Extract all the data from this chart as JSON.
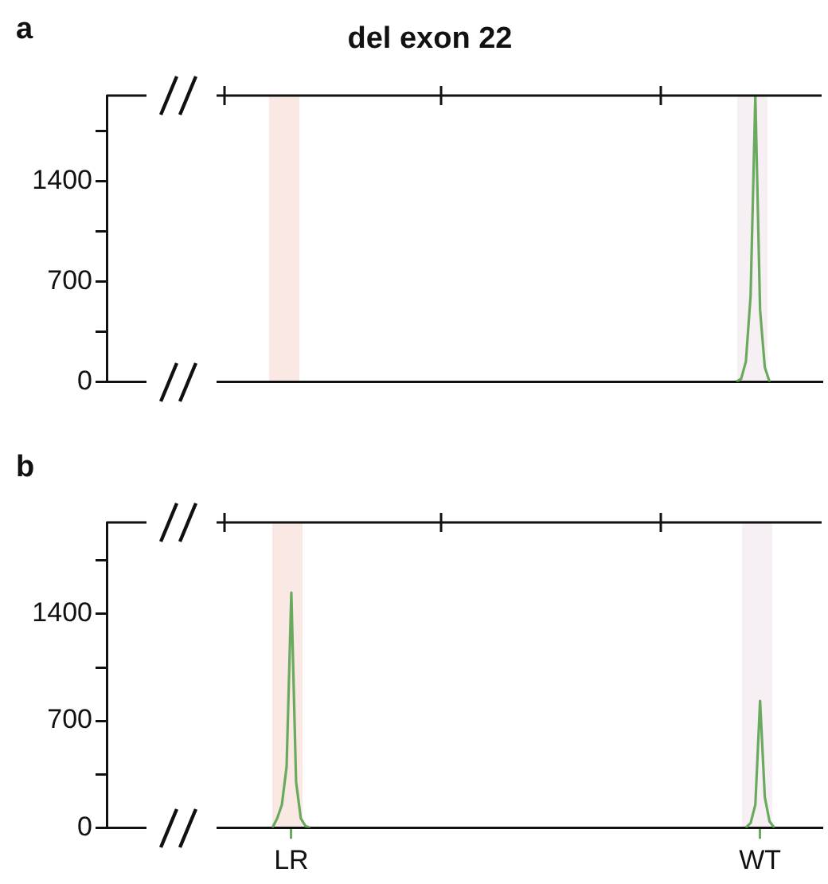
{
  "chart_data": [
    {
      "type": "line",
      "title": "del exon 22",
      "annotations": [
        "a"
      ],
      "marker": "none",
      "tick_labels": "y",
      "categories": [
        null,
        null,
        null,
        null,
        null,
        null,
        null,
        null,
        null,
        null,
        null,
        null,
        null,
        null,
        null,
        null,
        null,
        null,
        null,
        null,
        null,
        null,
        null,
        null,
        null,
        null,
        null,
        null,
        null,
        null,
        null,
        null,
        null,
        null,
        null,
        null,
        null,
        null,
        null,
        null,
        null,
        null,
        null,
        null,
        null,
        null,
        null,
        null,
        null,
        null,
        null,
        null,
        null,
        null,
        null,
        null,
        null,
        null,
        null,
        null,
        null,
        null,
        null,
        null,
        null,
        null,
        null,
        null,
        null,
        null,
        null,
        null,
        null,
        null,
        null,
        null,
        null,
        null,
        null,
        null,
        null,
        null,
        null,
        null,
        null,
        null,
        null,
        null,
        null,
        null,
        null,
        null,
        null,
        null,
        null,
        null,
        null,
        null,
        null,
        null,
        null,
        null,
        null,
        null,
        null,
        null,
        null,
        null,
        null,
        null,
        null,
        null,
        null,
        null,
        null,
        null,
        null,
        null,
        null,
        null,
        null,
        null,
        null,
        null,
        null,
        null,
        null,
        null,
        null,
        null,
        null,
        null,
        null,
        null,
        null,
        null,
        null,
        null,
        null,
        null,
        null,
        null,
        null,
        null,
        null,
        null,
        null,
        null,
        null,
        null,
        null,
        null
      ],
      "ylim": [
        0,
        2000
      ],
      "yticks": [
        0,
        {
          "value": 350,
          "label": null
        },
        700,
        {
          "value": 1050,
          "label": null
        },
        1400,
        {
          "value": 1750,
          "label": null
        }
      ],
      "series": [
        {
          "color": "#6aaa5e",
          "values": [
            null,
            null,
            null,
            null,
            null,
            null,
            null,
            null,
            null,
            null,
            null,
            null,
            null,
            null,
            null,
            null,
            null,
            null,
            null,
            null,
            null,
            null,
            null,
            null,
            null,
            null,
            null,
            null,
            null,
            null,
            null,
            null,
            null,
            null,
            null,
            null,
            null,
            null,
            null,
            null,
            null,
            null,
            null,
            null,
            null,
            null,
            null,
            null,
            null,
            null,
            null,
            null,
            null,
            null,
            null,
            null,
            null,
            null,
            null,
            null,
            null,
            null,
            null,
            null,
            null,
            null,
            null,
            null,
            null,
            null,
            null,
            null,
            null,
            null,
            null,
            null,
            null,
            null,
            null,
            null,
            null,
            null,
            null,
            null,
            null,
            null,
            null,
            null,
            null,
            null,
            null,
            null,
            null,
            null,
            null,
            null,
            null,
            null,
            null,
            null,
            null,
            null,
            null,
            null,
            null,
            null,
            null,
            null,
            null,
            null,
            null,
            null,
            null,
            null,
            null,
            null,
            null,
            null,
            null,
            null,
            null,
            null,
            null,
            null,
            null,
            null,
            null,
            null,
            null,
            null,
            null,
            null,
            null,
            0,
            20,
            140,
            600,
            2000,
            500,
            100,
            0,
            null,
            null,
            null,
            null,
            null,
            null,
            null,
            null,
            null,
            null,
            null
          ]
        }
      ]
    },
    {
      "type": "line",
      "annotations": [
        "b"
      ],
      "marker": "none",
      "categories": [
        null,
        null,
        null,
        null,
        null,
        null,
        null,
        null,
        null,
        null,
        null,
        null,
        null,
        null,
        null,
        null,
        null,
        null,
        null,
        null,
        null,
        null,
        null,
        null,
        null,
        null,
        null,
        null,
        null,
        null,
        null,
        null,
        null,
        null,
        null,
        null,
        null,
        null,
        null,
        "LR",
        null,
        null,
        null,
        null,
        null,
        null,
        null,
        null,
        null,
        null,
        null,
        null,
        null,
        null,
        null,
        null,
        null,
        null,
        null,
        null,
        null,
        null,
        null,
        null,
        null,
        null,
        null,
        null,
        null,
        null,
        null,
        null,
        null,
        null,
        null,
        null,
        null,
        null,
        null,
        null,
        null,
        null,
        null,
        null,
        null,
        null,
        null,
        null,
        null,
        null,
        null,
        null,
        null,
        null,
        null,
        null,
        null,
        null,
        null,
        null,
        null,
        null,
        null,
        null,
        null,
        null,
        null,
        null,
        null,
        null,
        null,
        null,
        null,
        null,
        null,
        null,
        null,
        null,
        null,
        null,
        null,
        null,
        null,
        null,
        null,
        null,
        null,
        null,
        null,
        null,
        null,
        null,
        null,
        null,
        null,
        null,
        null,
        null,
        "WT",
        null,
        null,
        null,
        null,
        null,
        null,
        null,
        null,
        null,
        null,
        null,
        null,
        null
      ],
      "ylim": [
        0,
        2000
      ],
      "yticks": [
        0,
        {
          "value": 350,
          "label": null
        },
        700,
        {
          "value": 1050,
          "label": null
        },
        1400,
        {
          "value": 1750,
          "label": null
        }
      ],
      "series": [
        {
          "color": "#6aaa5e",
          "values": [
            null,
            null,
            null,
            null,
            null,
            null,
            null,
            null,
            null,
            null,
            null,
            null,
            null,
            null,
            null,
            null,
            null,
            null,
            null,
            null,
            null,
            null,
            null,
            null,
            null,
            null,
            null,
            null,
            null,
            null,
            null,
            null,
            null,
            null,
            null,
            0,
            60,
            150,
            400,
            1540,
            300,
            60,
            10,
            0,
            null,
            null,
            null,
            null,
            null,
            null,
            null,
            null,
            null,
            null,
            null,
            null,
            null,
            null,
            null,
            null,
            null,
            null,
            null,
            null,
            null,
            null,
            null,
            null,
            null,
            null,
            null,
            null,
            null,
            null,
            null,
            null,
            null,
            null,
            null,
            null,
            null,
            null,
            null,
            null,
            null,
            null,
            null,
            null,
            null,
            null,
            null,
            null,
            null,
            null,
            null,
            null,
            null,
            null,
            null,
            null,
            null,
            null,
            null,
            null,
            null,
            null,
            null,
            null,
            null,
            null,
            null,
            null,
            null,
            null,
            null,
            null,
            null,
            null,
            null,
            null,
            null,
            null,
            null,
            null,
            null,
            null,
            null,
            null,
            null,
            null,
            null,
            null,
            null,
            null,
            null,
            0,
            30,
            150,
            830,
            200,
            40,
            0,
            null,
            null,
            null,
            null,
            null,
            null,
            null,
            null,
            null,
            null
          ]
        }
      ]
    }
  ]
}
